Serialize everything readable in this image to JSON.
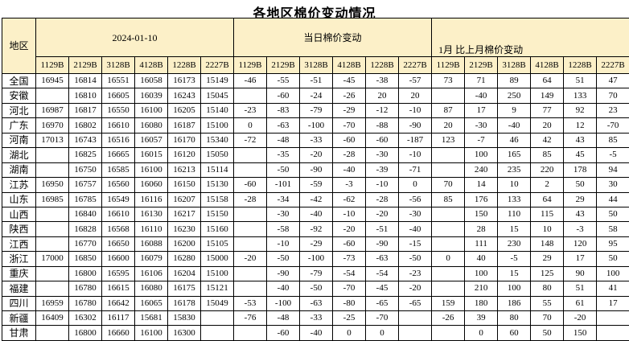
{
  "title": "各地区棉价变动情况",
  "colors": {
    "header_bg": "#FCF0C8",
    "negative_value": "#0077CE",
    "positive_value": "#FB0000",
    "border": "#000000",
    "page_bg": "#FFFFFF"
  },
  "table": {
    "region_header": "地区",
    "groups": [
      {
        "label": "2024-01-10"
      },
      {
        "label": "当日棉价变动"
      },
      {
        "label": "1月 比上月棉价变动"
      }
    ],
    "col_headers": [
      "1129B",
      "2129B",
      "3128B",
      "4128B",
      "1228B",
      "2227B"
    ],
    "rows": [
      {
        "region": "全国",
        "price": [
          16945,
          16814,
          16551,
          16058,
          16173,
          15149
        ],
        "daily": [
          -46,
          -55,
          -51,
          -45,
          -38,
          -57
        ],
        "monthly": [
          73,
          71,
          89,
          64,
          51,
          47
        ]
      },
      {
        "region": "安徽",
        "price": [
          "",
          16810,
          16605,
          16039,
          16243,
          15045
        ],
        "daily": [
          "",
          -60,
          -24,
          -26,
          20,
          20
        ],
        "monthly": [
          "",
          -40,
          250,
          149,
          133,
          70
        ]
      },
      {
        "region": "河北",
        "price": [
          16987,
          16817,
          16550,
          16100,
          16205,
          15140
        ],
        "daily": [
          -23,
          -83,
          -79,
          -29,
          -12,
          -10
        ],
        "monthly": [
          87,
          17,
          9,
          77,
          92,
          23
        ]
      },
      {
        "region": "广东",
        "price": [
          16970,
          16802,
          16610,
          16080,
          16187,
          15100
        ],
        "daily": [
          0,
          -63,
          -100,
          -70,
          -88,
          -90
        ],
        "monthly": [
          20,
          -30,
          -40,
          20,
          12,
          -70
        ]
      },
      {
        "region": "河南",
        "price": [
          17013,
          16743,
          16516,
          16057,
          16170,
          15340
        ],
        "daily": [
          -72,
          -48,
          -33,
          -60,
          -60,
          -187
        ],
        "monthly": [
          123,
          -7,
          46,
          42,
          43,
          85
        ]
      },
      {
        "region": "湖北",
        "price": [
          "",
          16825,
          16665,
          16015,
          16120,
          15050
        ],
        "daily": [
          "",
          -35,
          -20,
          -28,
          -30,
          -10
        ],
        "monthly": [
          "",
          100,
          165,
          85,
          45,
          -5
        ]
      },
      {
        "region": "湖南",
        "price": [
          "",
          16750,
          16585,
          16100,
          16213,
          15114
        ],
        "daily": [
          "",
          -50,
          -90,
          -40,
          -39,
          -71
        ],
        "monthly": [
          "",
          240,
          235,
          220,
          178,
          94
        ]
      },
      {
        "region": "江苏",
        "price": [
          16950,
          16757,
          16560,
          16060,
          16150,
          15130
        ],
        "daily": [
          -60,
          -101,
          -59,
          -3,
          -10,
          0
        ],
        "monthly": [
          70,
          14,
          10,
          2,
          50,
          30
        ]
      },
      {
        "region": "山东",
        "price": [
          16985,
          16785,
          16549,
          16116,
          16207,
          15158
        ],
        "daily": [
          -28,
          -34,
          -42,
          -62,
          -28,
          -56
        ],
        "monthly": [
          85,
          176,
          133,
          64,
          29,
          44
        ]
      },
      {
        "region": "山西",
        "price": [
          "",
          16840,
          16610,
          16130,
          16217,
          15150
        ],
        "daily": [
          "",
          -30,
          -40,
          -10,
          -20,
          -30
        ],
        "monthly": [
          "",
          150,
          110,
          115,
          43,
          50
        ]
      },
      {
        "region": "陕西",
        "price": [
          "",
          16828,
          16568,
          16110,
          16230,
          15160
        ],
        "daily": [
          "",
          -58,
          -92,
          -20,
          -51,
          -40
        ],
        "monthly": [
          "",
          28,
          15,
          10,
          -3,
          58
        ]
      },
      {
        "region": "江西",
        "price": [
          "",
          16770,
          16650,
          16088,
          16200,
          15105
        ],
        "daily": [
          "",
          -10,
          -29,
          -60,
          -90,
          -15
        ],
        "monthly": [
          "",
          111,
          230,
          148,
          120,
          95
        ]
      },
      {
        "region": "浙江",
        "price": [
          17000,
          16850,
          16600,
          16079,
          16280,
          15000
        ],
        "daily": [
          -20,
          -50,
          -100,
          -73,
          -63,
          -50
        ],
        "monthly": [
          0,
          40,
          -5,
          29,
          17,
          50
        ]
      },
      {
        "region": "重庆",
        "price": [
          "",
          16800,
          16595,
          16106,
          16204,
          15100
        ],
        "daily": [
          "",
          -90,
          -79,
          -54,
          -54,
          -23
        ],
        "monthly": [
          "",
          100,
          15,
          125,
          90,
          100
        ]
      },
      {
        "region": "福建",
        "price": [
          "",
          16780,
          16615,
          16080,
          16175,
          15121
        ],
        "daily": [
          "",
          -40,
          -50,
          -70,
          -45,
          -20
        ],
        "monthly": [
          "",
          210,
          100,
          80,
          51,
          41
        ]
      },
      {
        "region": "四川",
        "price": [
          16959,
          16780,
          16642,
          16065,
          16178,
          15049
        ],
        "daily": [
          -53,
          -100,
          -63,
          -80,
          -65,
          -65
        ],
        "monthly": [
          159,
          180,
          186,
          55,
          61,
          17
        ]
      },
      {
        "region": "新疆",
        "price": [
          16409,
          16302,
          16117,
          15681,
          15830,
          ""
        ],
        "daily": [
          -76,
          -48,
          -33,
          -25,
          -70,
          ""
        ],
        "monthly": [
          -26,
          39,
          80,
          70,
          -20,
          ""
        ]
      },
      {
        "region": "甘肃",
        "price": [
          "",
          16800,
          16660,
          16100,
          16300,
          ""
        ],
        "daily": [
          "",
          -60,
          -40,
          0,
          0,
          ""
        ],
        "monthly": [
          "",
          0,
          60,
          50,
          150,
          ""
        ]
      }
    ]
  }
}
